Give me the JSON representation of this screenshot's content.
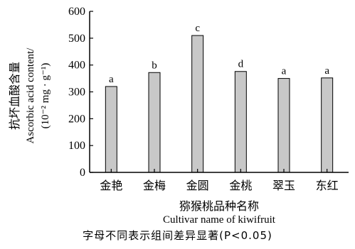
{
  "chart_data": {
    "type": "bar",
    "categories": [
      "金艳",
      "金梅",
      "金圆",
      "金桃",
      "翠玉",
      "东红"
    ],
    "values": [
      320,
      372,
      510,
      376,
      350,
      352
    ],
    "significance": [
      "a",
      "b",
      "c",
      "d",
      "a",
      "a"
    ],
    "ylim": [
      0,
      600
    ],
    "yticks": [
      0,
      100,
      200,
      300,
      400,
      500,
      600
    ],
    "ylabel_cn": "抗坏血酸含量",
    "ylabel_en": "Ascorbic acid content/",
    "ylabel_unit": "(10⁻² mg · g⁻¹)",
    "xlabel_cn": "猕猴桃品种名称",
    "xlabel_en": "Cultivar name of kiwifruit",
    "grid": false,
    "bar_color": "#c8c8c8"
  },
  "caption": "字母不同表示组间差异显著(P<0.05)"
}
